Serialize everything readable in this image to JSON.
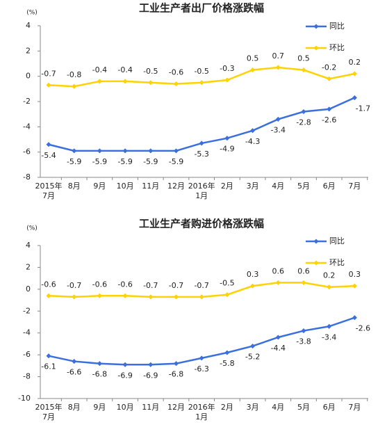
{
  "chart_data": [
    {
      "type": "line",
      "title": "工业生产者出厂价格涨跌幅",
      "y_label": "(%)",
      "categories": [
        "2015年\n7月",
        "8月",
        "9月",
        "10月",
        "11月",
        "12月",
        "2016年\n1月",
        "2月",
        "3月",
        "4月",
        "5月",
        "6月",
        "7月"
      ],
      "series": [
        {
          "name": "同比",
          "color": "#3b6fe0",
          "values": [
            -5.4,
            -5.9,
            -5.9,
            -5.9,
            -5.9,
            -5.9,
            -5.3,
            -4.9,
            -4.3,
            -3.4,
            -2.8,
            -2.6,
            -1.7
          ]
        },
        {
          "name": "环比",
          "color": "#ffd200",
          "values": [
            -0.7,
            -0.8,
            -0.4,
            -0.4,
            -0.5,
            -0.6,
            -0.5,
            -0.3,
            0.5,
            0.7,
            0.5,
            -0.2,
            0.2
          ]
        }
      ],
      "ylim": [
        -8,
        4
      ],
      "yticks": [
        -8,
        -6,
        -4,
        -2,
        0,
        2,
        4
      ],
      "legend": "upper right"
    },
    {
      "type": "line",
      "title": "工业生产者购进价格涨跌幅",
      "y_label": "(%)",
      "categories": [
        "2015年\n7月",
        "8月",
        "9月",
        "10月",
        "11月",
        "12月",
        "2016年\n1月",
        "2月",
        "3月",
        "4月",
        "5月",
        "6月",
        "7月"
      ],
      "series": [
        {
          "name": "同比",
          "color": "#3b6fe0",
          "values": [
            -6.1,
            -6.6,
            -6.8,
            -6.9,
            -6.9,
            -6.8,
            -6.3,
            -5.8,
            -5.2,
            -4.4,
            -3.8,
            -3.4,
            -2.6
          ]
        },
        {
          "name": "环比",
          "color": "#ffd200",
          "values": [
            -0.6,
            -0.7,
            -0.6,
            -0.6,
            -0.7,
            -0.7,
            -0.7,
            -0.5,
            0.3,
            0.6,
            0.6,
            0.2,
            0.3
          ]
        }
      ],
      "ylim": [
        -10,
        4
      ],
      "yticks": [
        -10,
        -8,
        -6,
        -4,
        -2,
        0,
        2,
        4
      ],
      "legend": "upper right"
    }
  ]
}
